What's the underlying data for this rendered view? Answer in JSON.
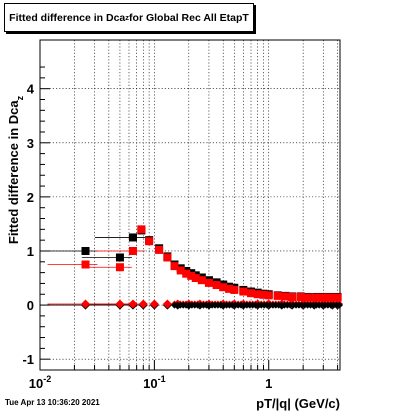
{
  "page": {
    "title_main": "Fitted difference in Dca",
    "title_sub": "z",
    "title_rest": " for Global Rec All EtapT",
    "timestamp": "Tue Apr 13 10:36:20 2021"
  },
  "chart_data": {
    "type": "scatter",
    "title": "Fitted difference in Dca_z for Global Rec All EtapT",
    "xlabel": "pT/|q| (GeV/c)",
    "ylabel": "difference in Dca_z",
    "xscale": "log",
    "xlim": [
      0.01,
      4.2
    ],
    "ylim": [
      -1.2,
      4.9
    ],
    "grid": true,
    "x_ticks": [
      {
        "v": 0.01,
        "label": "10",
        "sup": "-2"
      },
      {
        "v": 0.1,
        "label": "10",
        "sup": "-1"
      },
      {
        "v": 1,
        "label": "1",
        "sup": ""
      }
    ],
    "y_ticks": [
      -1,
      0,
      1,
      2,
      3,
      4
    ],
    "series": [
      {
        "color": "#000000",
        "marker": "square",
        "points": [
          [
            0.025,
            1.0
          ],
          [
            0.05,
            0.88
          ],
          [
            0.065,
            1.25
          ],
          [
            0.077,
            1.38
          ],
          [
            0.09,
            1.2
          ],
          [
            0.11,
            1.05
          ],
          [
            0.13,
            0.9
          ],
          [
            0.15,
            0.75
          ],
          [
            0.17,
            0.68
          ],
          [
            0.19,
            0.63
          ],
          [
            0.21,
            0.59
          ],
          [
            0.23,
            0.55
          ],
          [
            0.26,
            0.51
          ],
          [
            0.3,
            0.46
          ],
          [
            0.35,
            0.42
          ],
          [
            0.4,
            0.38
          ],
          [
            0.45,
            0.34
          ],
          [
            0.5,
            0.32
          ],
          [
            0.6,
            0.28
          ],
          [
            0.7,
            0.25
          ],
          [
            0.8,
            0.23
          ],
          [
            0.9,
            0.21
          ],
          [
            1.0,
            0.2
          ],
          [
            1.2,
            0.18
          ],
          [
            1.4,
            0.17
          ],
          [
            1.6,
            0.16
          ],
          [
            1.9,
            0.16
          ],
          [
            2.2,
            0.15
          ],
          [
            2.6,
            0.15
          ],
          [
            3.0,
            0.15
          ],
          [
            3.5,
            0.15
          ],
          [
            4.0,
            0.15
          ]
        ]
      },
      {
        "color": "#ff0000",
        "marker": "square",
        "points": [
          [
            0.025,
            0.75
          ],
          [
            0.05,
            0.7
          ],
          [
            0.065,
            1.0
          ],
          [
            0.077,
            1.4
          ],
          [
            0.09,
            1.18
          ],
          [
            0.11,
            1.02
          ],
          [
            0.13,
            0.88
          ],
          [
            0.15,
            0.72
          ],
          [
            0.17,
            0.64
          ],
          [
            0.19,
            0.58
          ],
          [
            0.21,
            0.54
          ],
          [
            0.23,
            0.5
          ],
          [
            0.26,
            0.46
          ],
          [
            0.3,
            0.41
          ],
          [
            0.35,
            0.37
          ],
          [
            0.4,
            0.33
          ],
          [
            0.45,
            0.3
          ],
          [
            0.5,
            0.28
          ],
          [
            0.6,
            0.25
          ],
          [
            0.7,
            0.22
          ],
          [
            0.8,
            0.2
          ],
          [
            0.9,
            0.19
          ],
          [
            1.0,
            0.18
          ],
          [
            1.2,
            0.17
          ],
          [
            1.4,
            0.16
          ],
          [
            1.6,
            0.15
          ],
          [
            1.9,
            0.15
          ],
          [
            2.2,
            0.14
          ],
          [
            2.6,
            0.14
          ],
          [
            3.0,
            0.14
          ],
          [
            3.5,
            0.14
          ],
          [
            4.0,
            0.14
          ]
        ]
      },
      {
        "color": "#000000",
        "marker": "diamond",
        "points": [
          [
            0.025,
            0.0
          ],
          [
            0.05,
            0.0
          ],
          [
            0.065,
            0.0
          ],
          [
            0.08,
            0.0
          ],
          [
            0.1,
            0.0
          ],
          [
            0.13,
            0.0
          ],
          [
            0.16,
            0.0
          ],
          [
            0.2,
            0.0
          ],
          [
            0.25,
            0.0
          ],
          [
            0.3,
            0.0
          ],
          [
            0.4,
            0.0
          ],
          [
            0.5,
            0.0
          ],
          [
            0.6,
            0.0
          ],
          [
            0.8,
            0.0
          ],
          [
            1.0,
            0.0
          ],
          [
            1.3,
            0.0
          ],
          [
            1.6,
            0.0
          ],
          [
            2.0,
            0.0
          ],
          [
            2.5,
            0.0
          ],
          [
            3.0,
            0.0
          ],
          [
            3.6,
            0.0
          ],
          [
            4.0,
            0.0
          ]
        ]
      },
      {
        "color": "#ff0000",
        "marker": "diamond",
        "points": [
          [
            0.025,
            0.02
          ],
          [
            0.05,
            0.02
          ],
          [
            0.065,
            0.02
          ],
          [
            0.08,
            0.02
          ],
          [
            0.1,
            0.02
          ],
          [
            0.13,
            0.02
          ],
          [
            0.16,
            0.02
          ],
          [
            0.2,
            0.02
          ],
          [
            0.25,
            0.02
          ],
          [
            0.3,
            0.02
          ],
          [
            0.4,
            0.02
          ],
          [
            0.5,
            0.02
          ],
          [
            0.6,
            0.02
          ],
          [
            0.8,
            0.02
          ],
          [
            1.0,
            0.02
          ],
          [
            1.3,
            0.02
          ],
          [
            1.6,
            0.02
          ],
          [
            2.0,
            0.02
          ],
          [
            2.5,
            0.02
          ],
          [
            3.0,
            0.02
          ],
          [
            3.6,
            0.02
          ],
          [
            4.0,
            0.02
          ]
        ]
      }
    ]
  }
}
